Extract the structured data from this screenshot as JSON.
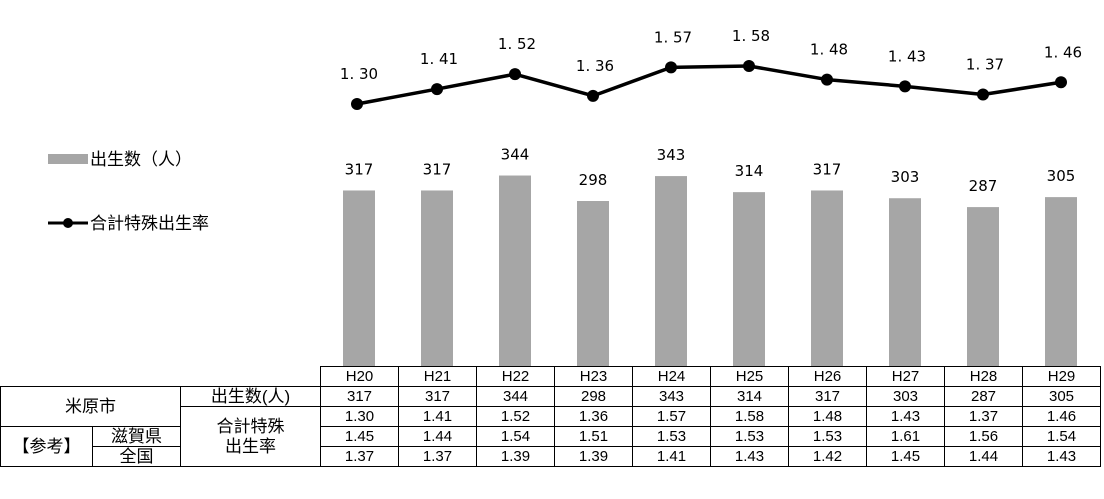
{
  "legend": {
    "births_label": "出生数（人）",
    "rate_label": "合計特殊出生率"
  },
  "colors": {
    "bar": "#a6a6a6",
    "line": "#000000"
  },
  "chart_data": {
    "type": "bar",
    "categories": [
      "H20",
      "H21",
      "H22",
      "H23",
      "H24",
      "H25",
      "H26",
      "H27",
      "H28",
      "H29"
    ],
    "series": [
      {
        "name": "出生数（人）",
        "type": "bar",
        "values": [
          317,
          317,
          344,
          298,
          343,
          314,
          317,
          303,
          287,
          305
        ],
        "value_labels": [
          "317",
          "317",
          "344",
          "298",
          "343",
          "314",
          "317",
          "303",
          "287",
          "305"
        ]
      },
      {
        "name": "合計特殊出生率",
        "type": "line",
        "values": [
          1.3,
          1.41,
          1.52,
          1.36,
          1.57,
          1.58,
          1.48,
          1.43,
          1.37,
          1.46
        ],
        "value_labels": [
          "1. 30",
          "1. 41",
          "1. 52",
          "1. 36",
          "1. 57",
          "1. 58",
          "1. 48",
          "1. 43",
          "1. 37",
          "1. 46"
        ]
      }
    ]
  },
  "table": {
    "city": "米原市",
    "births_row_label": "出生数(人)",
    "rate_row_label_1": "合計特殊",
    "rate_row_label_2": "出生率",
    "reference_label": "【参考】",
    "shiga_label": "滋賀県",
    "national_label": "全国",
    "years": [
      "H20",
      "H21",
      "H22",
      "H23",
      "H24",
      "H25",
      "H26",
      "H27",
      "H28",
      "H29"
    ],
    "births": [
      "317",
      "317",
      "344",
      "298",
      "343",
      "314",
      "317",
      "303",
      "287",
      "305"
    ],
    "city_rate": [
      "1.30",
      "1.41",
      "1.52",
      "1.36",
      "1.57",
      "1.58",
      "1.48",
      "1.43",
      "1.37",
      "1.46"
    ],
    "shiga_rate": [
      "1.45",
      "1.44",
      "1.54",
      "1.51",
      "1.53",
      "1.53",
      "1.53",
      "1.61",
      "1.56",
      "1.54"
    ],
    "national_rate": [
      "1.37",
      "1.37",
      "1.39",
      "1.39",
      "1.41",
      "1.43",
      "1.42",
      "1.45",
      "1.44",
      "1.43"
    ]
  }
}
